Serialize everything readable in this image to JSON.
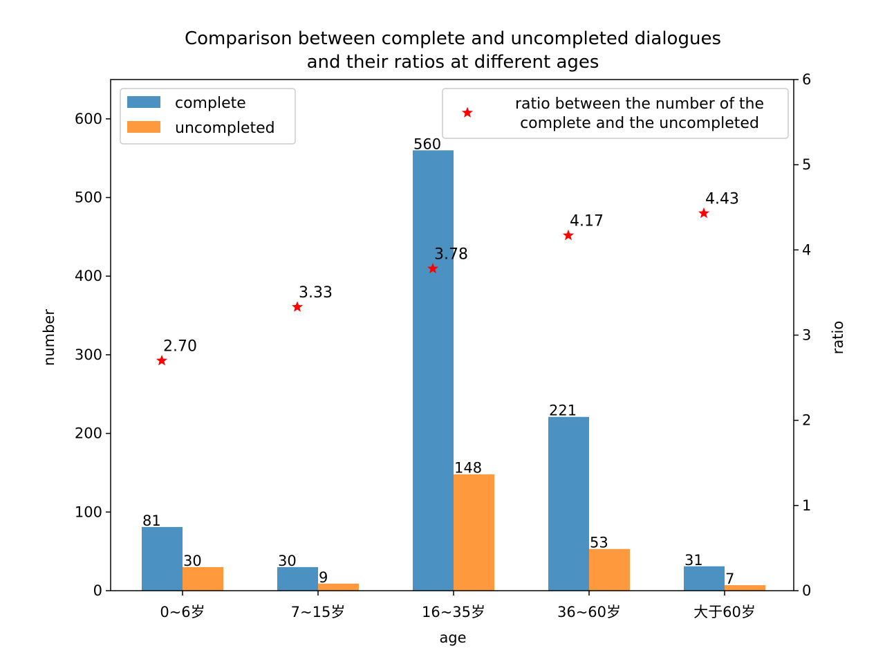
{
  "chart_data": {
    "type": "bar",
    "title_lines": [
      "Comparison between complete and uncompleted dialogues",
      "and their ratios at different ages"
    ],
    "xlabel": "age",
    "ylabel": "number",
    "y2label": "ratio",
    "categories": [
      "0~6岁",
      "7~15岁",
      "16~35岁",
      "36~60岁",
      "大于60岁"
    ],
    "series": [
      {
        "name": "complete",
        "color": "#4b92c3",
        "values": [
          81,
          30,
          560,
          221,
          31
        ],
        "labels": [
          "81",
          "30",
          "560",
          "221",
          "31"
        ]
      },
      {
        "name": "uncompleted",
        "color": "#ff993e",
        "values": [
          30,
          9,
          148,
          53,
          7
        ],
        "labels": [
          "30",
          "9",
          "148",
          "53",
          "7"
        ]
      }
    ],
    "ratio_series": {
      "name": "ratio between the number of the complete and the uncompleted",
      "legend_lines": [
        "ratio between the number of the",
        "complete and the uncompleted"
      ],
      "color": "#ff0000",
      "marker": "star",
      "values": [
        2.7,
        3.33,
        3.78,
        4.17,
        4.43
      ],
      "labels": [
        "2.70",
        "3.33",
        "3.78",
        "4.17",
        "4.43"
      ]
    },
    "ylim": [
      0,
      650
    ],
    "y2lim": [
      0,
      6
    ],
    "yticks": [
      0,
      100,
      200,
      300,
      400,
      500,
      600
    ],
    "y2ticks": [
      0,
      1,
      2,
      3,
      4,
      5,
      6
    ],
    "legend_bars_placement": "top-left",
    "legend_ratio_placement": "top-right",
    "grid": false
  }
}
